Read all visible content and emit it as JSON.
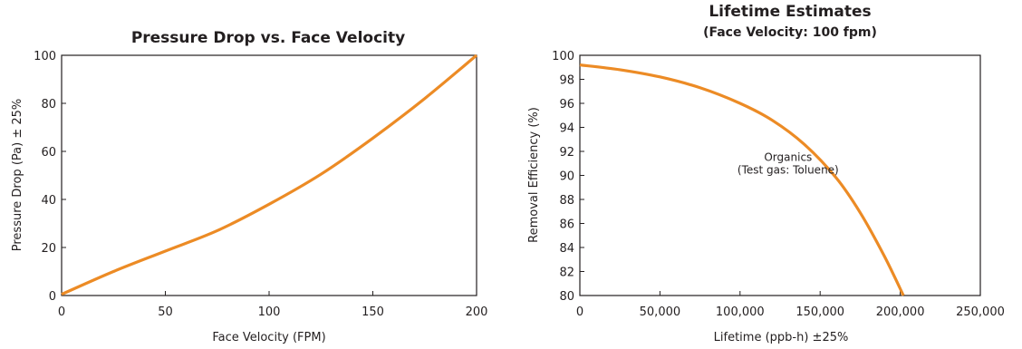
{
  "chart_data": [
    {
      "type": "line",
      "title": "Pressure Drop vs. Face Velocity",
      "subtitle": "",
      "xlabel": "Face Velocity (FPM)",
      "ylabel": "Pressure Drop (Pa) ± 25%",
      "xlim": [
        0,
        200
      ],
      "ylim": [
        0,
        100
      ],
      "xticks": [
        "0",
        "50",
        "100",
        "150",
        "200"
      ],
      "yticks": [
        "0",
        "20",
        "40",
        "60",
        "80",
        "100"
      ],
      "xtick_values": [
        0,
        50,
        100,
        150,
        200
      ],
      "ytick_values": [
        0,
        20,
        40,
        60,
        80,
        100
      ],
      "grid": false,
      "line_color": "#ec8b25",
      "series": [
        {
          "x": [
            0,
            25,
            50,
            75,
            100,
            125,
            150,
            175,
            200
          ],
          "y": [
            0.5,
            10,
            18.5,
            27,
            38,
            50.5,
            65.5,
            82,
            100
          ]
        }
      ],
      "annotations": []
    },
    {
      "type": "line",
      "title": "Lifetime Estimates",
      "subtitle": "(Face Velocity: 100 fpm)",
      "xlabel": "Lifetime (ppb-h) ±25%",
      "ylabel": "Removal Efficiency (%)",
      "xlim": [
        0,
        250000
      ],
      "ylim": [
        80,
        100
      ],
      "xticks": [
        "0",
        "50,000",
        "100,000",
        "150,000",
        "200,000",
        "250,000"
      ],
      "yticks": [
        "80",
        "82",
        "84",
        "86",
        "88",
        "90",
        "92",
        "94",
        "96",
        "98",
        "100"
      ],
      "xtick_values": [
        0,
        50000,
        100000,
        150000,
        200000,
        250000
      ],
      "ytick_values": [
        80,
        82,
        84,
        86,
        88,
        90,
        92,
        94,
        96,
        98,
        100
      ],
      "grid": false,
      "line_color": "#ec8b25",
      "series": [
        {
          "x": [
            0,
            25000,
            50000,
            75000,
            100000,
            120000,
            140000,
            160000,
            175000,
            190000,
            202000
          ],
          "y": [
            99.2,
            98.8,
            98.2,
            97.3,
            96.0,
            94.6,
            92.6,
            89.8,
            86.9,
            83.3,
            80.0
          ]
        }
      ],
      "annotations": [
        {
          "lines": [
            "Organics",
            "(Test gas: Toluene)"
          ],
          "x": 130000,
          "y": 91.2
        }
      ]
    }
  ]
}
